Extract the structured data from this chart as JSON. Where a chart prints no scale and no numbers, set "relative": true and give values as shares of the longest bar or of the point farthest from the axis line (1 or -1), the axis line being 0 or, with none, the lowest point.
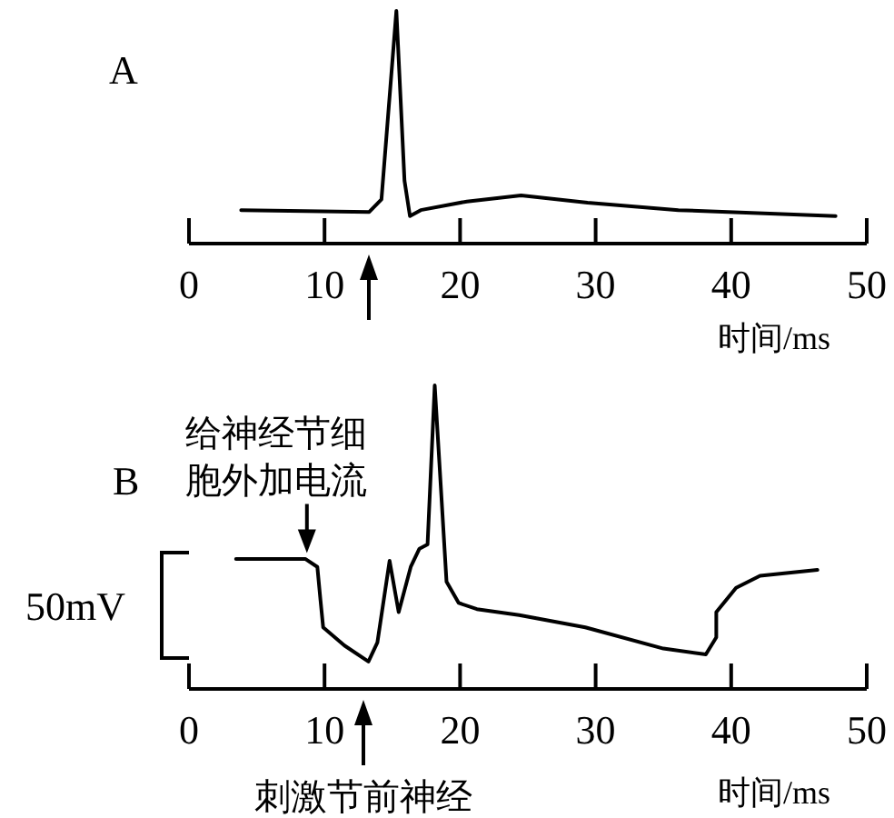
{
  "chart_data": [
    {
      "type": "line",
      "title": "A",
      "xlabel": "时间/ms",
      "relative": true,
      "tick_labels": "x",
      "xlim": [
        0,
        50
      ],
      "xticks": [
        0,
        10,
        20,
        30,
        40,
        50
      ],
      "grid": false,
      "marker": "none",
      "line_style": "solid",
      "x": [
        3.85,
        13.3,
        14.2,
        15.3,
        15.9,
        16.3,
        17.1,
        20.5,
        24.5,
        29.4,
        36.1,
        47.7
      ],
      "series": [
        {
          "color": "#000000",
          "values": [
            0.144,
            0.136,
            0.19,
            1,
            0.27,
            0.118,
            0.144,
            0.181,
            0.207,
            0.176,
            0.144,
            0.118
          ]
        }
      ]
    },
    {
      "type": "line",
      "title": "B",
      "xlabel": "时间/ms",
      "relative": true,
      "tick_labels": "x",
      "xlim": [
        0,
        50
      ],
      "xticks": [
        0,
        10,
        20,
        30,
        40,
        50
      ],
      "grid": false,
      "marker": "none",
      "line_style": "solid",
      "annotations": [
        {
          "text": "给神经节细胞外加电流",
          "x": 8.7,
          "y": 0.43
        },
        "刺激节前神经",
        "50mV"
      ],
      "x": [
        3.47,
        8.6,
        9.47,
        9.7,
        9.9,
        11.47,
        13.24,
        13.9,
        14.8,
        15.47,
        16.36,
        17.0,
        17.6,
        18.13,
        19.0,
        19.9,
        21.24,
        24.36,
        29.24,
        35.0,
        38.13,
        38.9,
        38.9,
        40.36,
        42.13,
        46.36
      ],
      "series": [
        {
          "color": "#000000",
          "values": [
            0.428,
            0.428,
            0.402,
            0.293,
            0.203,
            0.143,
            0.09,
            0.153,
            0.422,
            0.253,
            0.402,
            0.462,
            0.476,
            1,
            0.353,
            0.283,
            0.263,
            0.243,
            0.203,
            0.133,
            0.114,
            0.17,
            0.253,
            0.333,
            0.373,
            0.392
          ]
        }
      ]
    }
  ]
}
